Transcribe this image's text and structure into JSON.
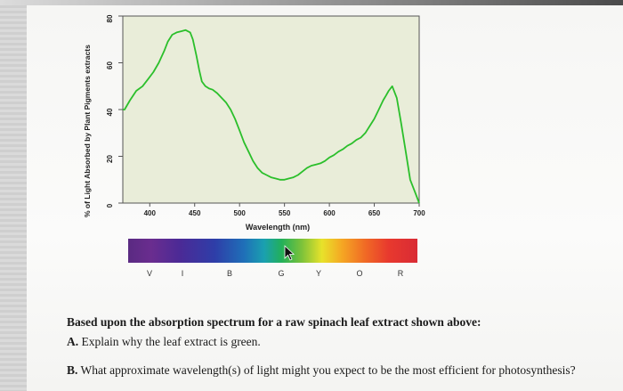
{
  "chart_data": {
    "type": "line",
    "ylabel": "% of Light Absorbed by Plant Pigments extracts",
    "xlabel": "Wavelength (nm)",
    "x_ticks": [
      400,
      450,
      500,
      550,
      600,
      650,
      700
    ],
    "y_ticks": [
      0,
      20,
      40,
      60,
      80
    ],
    "xlim": [
      370,
      700
    ],
    "ylim": [
      0,
      80
    ],
    "grid": false,
    "series": [
      {
        "color": "#2bbf2b",
        "x": [
          370,
          372,
          378,
          385,
          392,
          398,
          404,
          410,
          416,
          420,
          425,
          430,
          435,
          440,
          445,
          448,
          452,
          455,
          458,
          462,
          466,
          470,
          475,
          480,
          485,
          490,
          495,
          500,
          505,
          510,
          515,
          520,
          525,
          530,
          535,
          540,
          545,
          550,
          555,
          560,
          565,
          570,
          575,
          580,
          585,
          590,
          595,
          600,
          605,
          610,
          615,
          620,
          625,
          630,
          635,
          640,
          645,
          650,
          655,
          660,
          663,
          666,
          670,
          675,
          680,
          685,
          690,
          695,
          700
        ],
        "y": [
          40,
          40,
          44,
          48,
          50,
          53,
          56,
          60,
          65,
          69,
          72,
          73,
          73.5,
          74,
          73,
          70,
          63,
          57,
          52,
          50,
          49,
          48.5,
          47,
          45,
          43,
          40,
          36,
          31,
          26,
          22,
          18,
          15,
          13,
          12,
          11,
          10.5,
          10,
          10,
          10.5,
          11,
          12,
          13.5,
          15,
          16,
          16.5,
          17,
          18,
          19.5,
          20.5,
          22,
          23,
          24.5,
          25.5,
          27,
          28,
          30,
          33,
          36,
          40,
          44,
          46,
          48,
          50,
          45,
          34,
          22,
          10,
          5,
          0
        ]
      }
    ]
  },
  "spectrum_letters": [
    "V",
    "I",
    "B",
    "G",
    "Y",
    "O",
    "R"
  ],
  "questions": {
    "heading": "Based upon the absorption spectrum for a raw spinach leaf extract shown above:",
    "a_label": "A.",
    "a_text": "Explain why the leaf extract is green.",
    "b_label": "B.",
    "b_text": "What approximate wavelength(s) of light might you expect to be the most efficient for photosynthesis?"
  }
}
